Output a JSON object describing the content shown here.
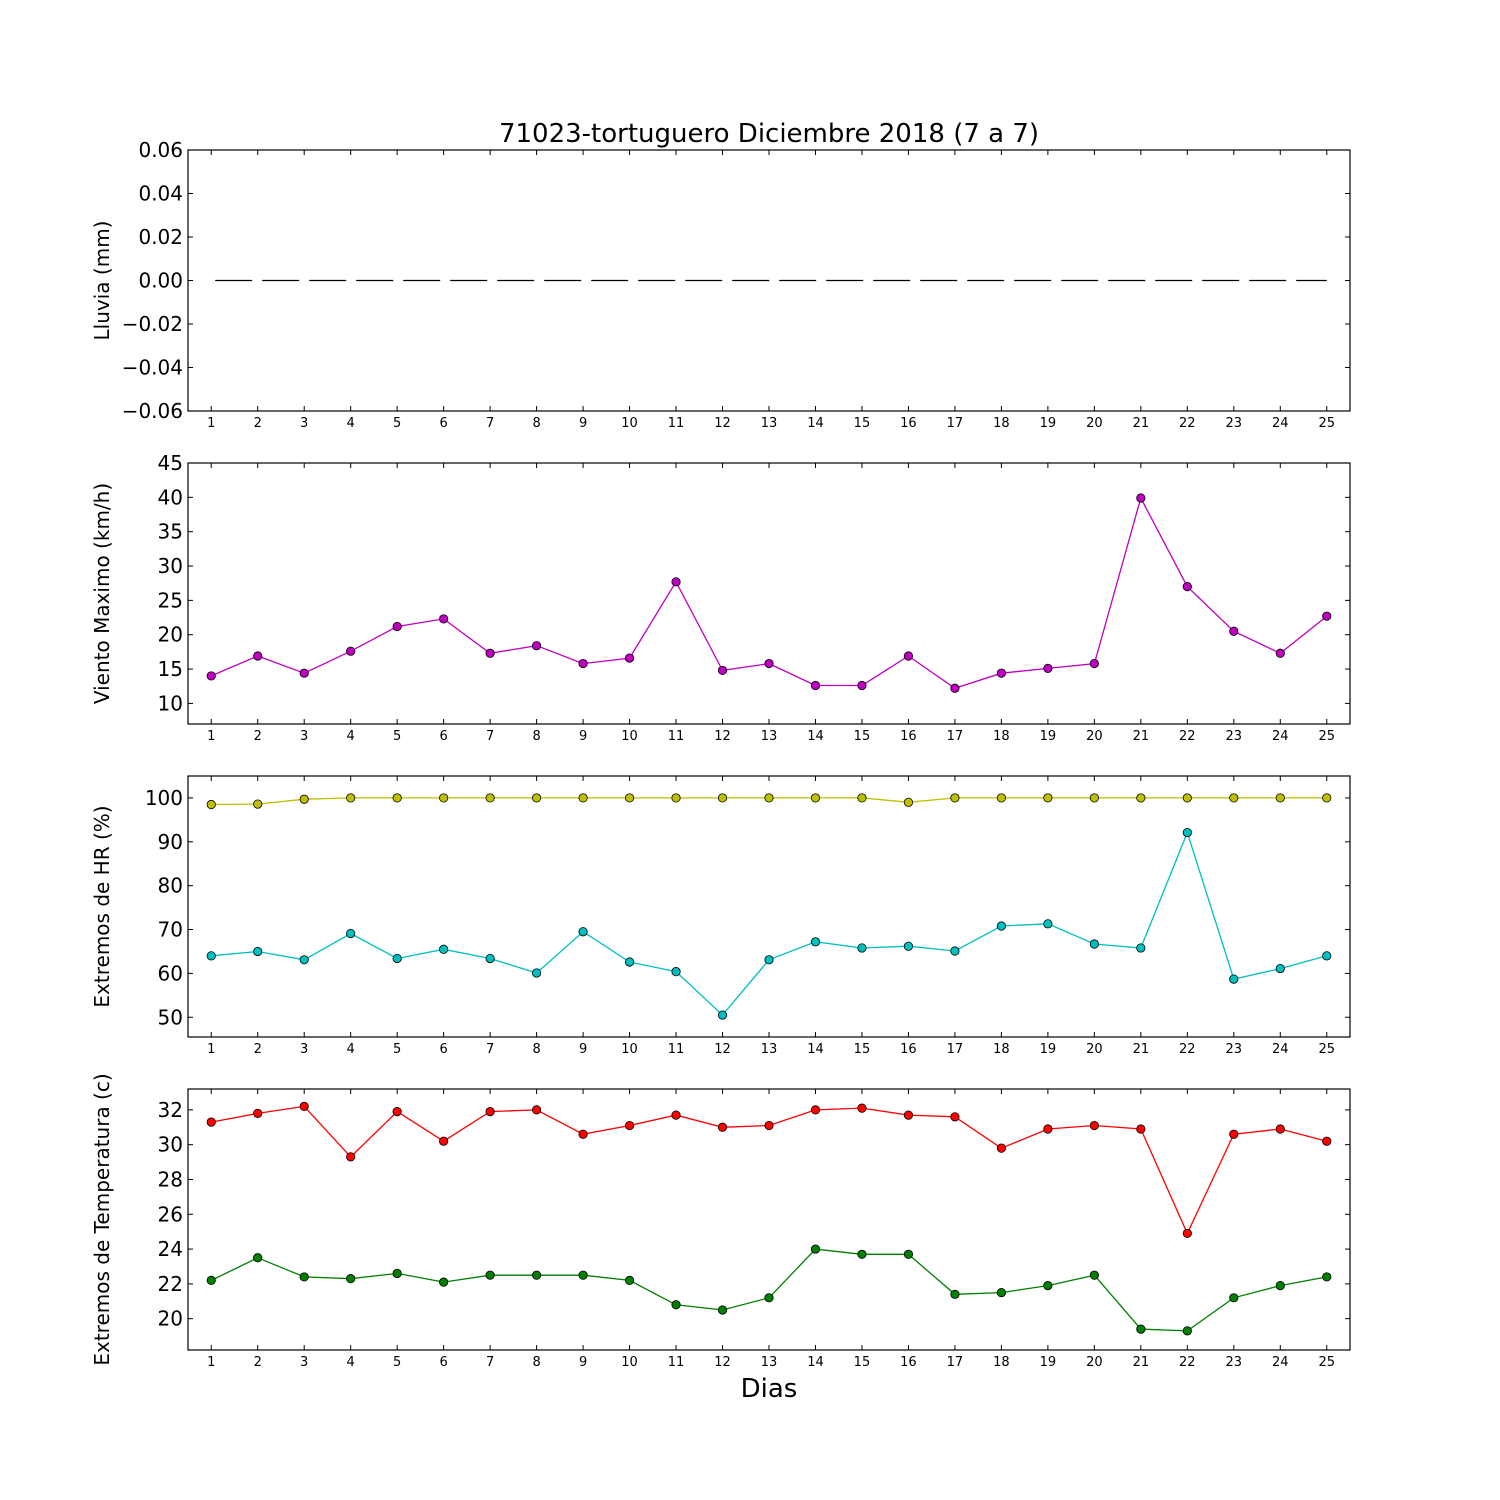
{
  "figure": {
    "title": "71023-tortuguero Diciembre 2018  (7 a 7)",
    "xlabel": "Dias"
  },
  "chart_data": [
    {
      "type": "line",
      "ylabel": "Lluvia (mm)",
      "x": [
        1,
        2,
        3,
        4,
        5,
        6,
        7,
        8,
        9,
        10,
        11,
        12,
        13,
        14,
        15,
        16,
        17,
        18,
        19,
        20,
        21,
        22,
        23,
        24,
        25
      ],
      "xlim": [
        0.5,
        25.5
      ],
      "ylim": [
        -0.06,
        0.06
      ],
      "yticks": [
        0.06,
        0.04,
        0.02,
        0.0,
        -0.02,
        -0.04,
        -0.06
      ],
      "ytick_labels": [
        "0.06",
        "0.04",
        "0.02",
        "0.00",
        "−0.02",
        "−0.04",
        "−0.06"
      ],
      "grid": false,
      "series": [
        {
          "color": "#000000",
          "linestyle": "dashed",
          "marker": false,
          "values": [
            0,
            0,
            0,
            0,
            0,
            0,
            0,
            0,
            0,
            0,
            0,
            0,
            0,
            0,
            0,
            0,
            0,
            0,
            0,
            0,
            0,
            0,
            0,
            0,
            0
          ]
        }
      ]
    },
    {
      "type": "line",
      "ylabel": "Viento Maximo (km/h)",
      "x": [
        1,
        2,
        3,
        4,
        5,
        6,
        7,
        8,
        9,
        10,
        11,
        12,
        13,
        14,
        15,
        16,
        17,
        18,
        19,
        20,
        21,
        22,
        23,
        24,
        25
      ],
      "xlim": [
        0.5,
        25.5
      ],
      "ylim": [
        7,
        45
      ],
      "yticks": [
        10,
        15,
        20,
        25,
        30,
        35,
        40,
        45
      ],
      "ytick_labels": [
        "10",
        "15",
        "20",
        "25",
        "30",
        "35",
        "40",
        "45"
      ],
      "grid": false,
      "series": [
        {
          "color": "#bf00bf",
          "linestyle": "solid",
          "marker": true,
          "values": [
            14.0,
            16.9,
            14.4,
            17.6,
            21.2,
            22.3,
            17.3,
            18.4,
            15.8,
            16.6,
            27.7,
            14.8,
            15.8,
            12.6,
            12.6,
            16.9,
            12.2,
            14.4,
            15.1,
            15.8,
            39.9,
            27.0,
            20.5,
            17.3,
            22.7
          ]
        }
      ]
    },
    {
      "type": "line",
      "ylabel": "Extremos de HR (%)",
      "x": [
        1,
        2,
        3,
        4,
        5,
        6,
        7,
        8,
        9,
        10,
        11,
        12,
        13,
        14,
        15,
        16,
        17,
        18,
        19,
        20,
        21,
        22,
        23,
        24,
        25
      ],
      "xlim": [
        0.5,
        25.5
      ],
      "ylim": [
        45.5,
        105
      ],
      "yticks": [
        50,
        60,
        70,
        80,
        90,
        100
      ],
      "ytick_labels": [
        "50",
        "60",
        "70",
        "80",
        "90",
        "100"
      ],
      "grid": false,
      "series": [
        {
          "color": "#bfbf00",
          "linestyle": "solid",
          "marker": true,
          "values": [
            98.5,
            98.6,
            99.7,
            100,
            100,
            100,
            100,
            100,
            100,
            100,
            100,
            100,
            100,
            100,
            100,
            99.0,
            100,
            100,
            100,
            100,
            100,
            100,
            100,
            100,
            100
          ]
        },
        {
          "color": "#00bfbf",
          "linestyle": "solid",
          "marker": true,
          "values": [
            64.0,
            65.0,
            63.1,
            69.1,
            63.4,
            65.5,
            63.4,
            60.1,
            69.5,
            62.6,
            60.4,
            50.5,
            63.1,
            67.2,
            65.8,
            66.2,
            65.1,
            70.8,
            71.3,
            66.7,
            65.8,
            92.1,
            58.7,
            61.1,
            64.0
          ]
        }
      ]
    },
    {
      "type": "line",
      "ylabel": "Extremos de Temperatura (c)",
      "x": [
        1,
        2,
        3,
        4,
        5,
        6,
        7,
        8,
        9,
        10,
        11,
        12,
        13,
        14,
        15,
        16,
        17,
        18,
        19,
        20,
        21,
        22,
        23,
        24,
        25
      ],
      "xlim": [
        0.5,
        25.5
      ],
      "ylim": [
        18.2,
        33.2
      ],
      "yticks": [
        20,
        22,
        24,
        26,
        28,
        30,
        32
      ],
      "ytick_labels": [
        "20",
        "22",
        "24",
        "26",
        "28",
        "30",
        "32"
      ],
      "grid": false,
      "series": [
        {
          "color": "#ff0000",
          "linestyle": "solid",
          "marker": true,
          "values": [
            31.3,
            31.8,
            32.2,
            29.3,
            31.9,
            30.2,
            31.9,
            32.0,
            30.6,
            31.1,
            31.7,
            31.0,
            31.1,
            32.0,
            32.1,
            31.7,
            31.6,
            29.8,
            30.9,
            31.1,
            30.9,
            24.9,
            30.6,
            30.9,
            30.2
          ]
        },
        {
          "color": "#007f00",
          "linestyle": "solid",
          "marker": true,
          "values": [
            22.2,
            23.5,
            22.4,
            22.3,
            22.6,
            22.1,
            22.5,
            22.5,
            22.5,
            22.2,
            20.8,
            20.5,
            21.2,
            24.0,
            23.7,
            23.7,
            21.4,
            21.5,
            21.9,
            22.5,
            19.4,
            19.3,
            21.2,
            21.9,
            22.4
          ]
        }
      ]
    }
  ]
}
